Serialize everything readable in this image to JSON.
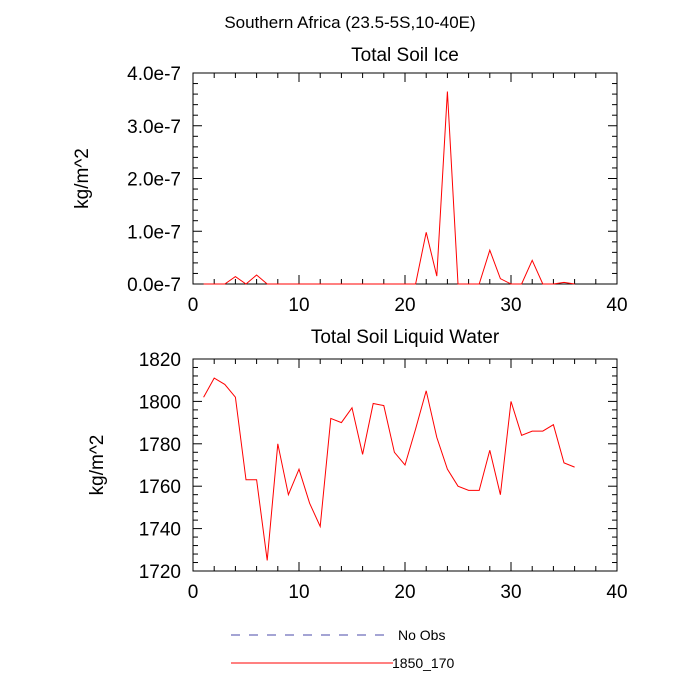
{
  "page": {
    "title": "Southern Africa (23.5-5S,10-40E)"
  },
  "chart_data": [
    {
      "type": "line",
      "title": "Total Soil Ice",
      "xlabel": "",
      "ylabel": "kg/m^2",
      "xlim": [
        0,
        40
      ],
      "ylim": [
        0,
        4e-07
      ],
      "xticks": [
        0,
        10,
        20,
        30,
        40
      ],
      "xtick_labels": [
        "0",
        "10",
        "20",
        "30",
        "40"
      ],
      "yticks": [
        0,
        1e-07,
        2e-07,
        3e-07,
        4e-07
      ],
      "ytick_labels": [
        "0.0e-7",
        "1.0e-7",
        "2.0e-7",
        "3.0e-7",
        "4.0e-7"
      ],
      "grid": false,
      "series": [
        {
          "name": "1850_170",
          "color": "#ff0000",
          "x": [
            1,
            2,
            3,
            4,
            5,
            6,
            7,
            8,
            9,
            10,
            11,
            12,
            13,
            14,
            15,
            16,
            17,
            18,
            19,
            20,
            21,
            22,
            23,
            24,
            25,
            26,
            27,
            28,
            29,
            30,
            31,
            32,
            33,
            34,
            35,
            36
          ],
          "values": [
            0,
            0,
            0,
            1.4e-08,
            0,
            1.7e-08,
            0,
            0,
            0,
            0,
            0,
            0,
            0,
            0,
            0,
            0,
            0,
            0,
            0,
            0,
            0,
            9.8e-08,
            1.5e-08,
            3.65e-07,
            0,
            0,
            0,
            6.4e-08,
            1e-08,
            0,
            0,
            4.5e-08,
            0,
            0,
            3e-09,
            0
          ]
        }
      ]
    },
    {
      "type": "line",
      "title": "Total Soil Liquid Water",
      "xlabel": "",
      "ylabel": "kg/m^2",
      "xlim": [
        0,
        40
      ],
      "ylim": [
        1720,
        1820
      ],
      "xticks": [
        0,
        10,
        20,
        30,
        40
      ],
      "xtick_labels": [
        "0",
        "10",
        "20",
        "30",
        "40"
      ],
      "yticks": [
        1720,
        1740,
        1760,
        1780,
        1800,
        1820
      ],
      "ytick_labels": [
        "1720",
        "1740",
        "1760",
        "1780",
        "1800",
        "1820"
      ],
      "grid": false,
      "series": [
        {
          "name": "1850_170",
          "color": "#ff0000",
          "x": [
            1,
            2,
            3,
            4,
            5,
            6,
            7,
            8,
            9,
            10,
            11,
            12,
            13,
            14,
            15,
            16,
            17,
            18,
            19,
            20,
            21,
            22,
            23,
            24,
            25,
            26,
            27,
            28,
            29,
            30,
            31,
            32,
            33,
            34,
            35,
            36
          ],
          "values": [
            1802,
            1811,
            1808,
            1802,
            1763,
            1763,
            1725,
            1780,
            1756,
            1768,
            1752,
            1741,
            1792,
            1790,
            1797,
            1775,
            1799,
            1798,
            1776,
            1770,
            1787,
            1805,
            1783,
            1768,
            1760,
            1758,
            1758,
            1777,
            1756,
            1800,
            1784,
            1786,
            1786,
            1789,
            1771,
            1769
          ]
        }
      ]
    }
  ],
  "legend": {
    "placement": "bottom-center",
    "items": [
      {
        "label": "No Obs",
        "color": "#4a4aa8",
        "style": "dashed"
      },
      {
        "label": "1850_170",
        "color": "#ff0000",
        "style": "solid"
      }
    ]
  }
}
